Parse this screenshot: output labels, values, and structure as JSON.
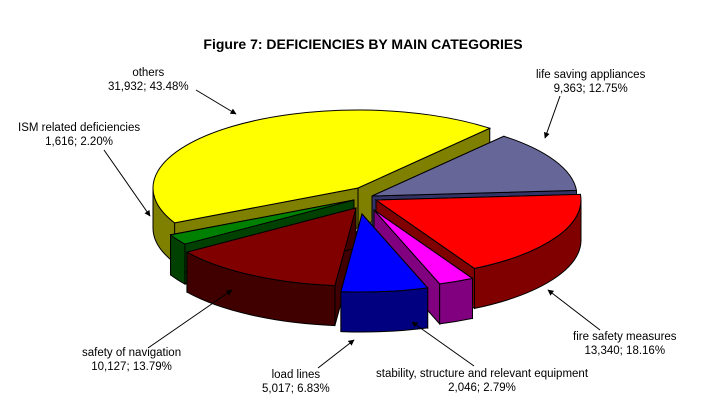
{
  "chart_data": {
    "type": "pie",
    "title": "Figure 7: DEFICIENCIES BY MAIN CATEGORIES",
    "three_d": true,
    "exploded": true,
    "legend": "none",
    "slices": [
      {
        "name": "life saving appliances",
        "value": 9363,
        "percent": "12.75%",
        "value_label": "9,363",
        "color": "#666699",
        "side_color": "#333366"
      },
      {
        "name": "fire safety measures",
        "value": 13340,
        "percent": "18.16%",
        "value_label": "13,340",
        "color": "#ff0000",
        "side_color": "#800000"
      },
      {
        "name": "stability, structure and relevant equipment",
        "value": 2046,
        "percent": "2.79%",
        "value_label": "2,046",
        "color": "#ff00ff",
        "side_color": "#800080"
      },
      {
        "name": "load lines",
        "value": 5017,
        "percent": "6.83%",
        "value_label": "5,017",
        "color": "#0000ff",
        "side_color": "#000080"
      },
      {
        "name": "safety of navigation",
        "value": 10127,
        "percent": "13.79%",
        "value_label": "10,127",
        "color": "#800000",
        "side_color": "#400000"
      },
      {
        "name": "ISM related deficiencies",
        "value": 1616,
        "percent": "2.20%",
        "value_label": "1,616",
        "color": "#008000",
        "side_color": "#004000"
      },
      {
        "name": "others",
        "value": 31932,
        "percent": "43.48%",
        "value_label": "31,932",
        "color": "#ffff00",
        "side_color": "#808000"
      }
    ]
  }
}
